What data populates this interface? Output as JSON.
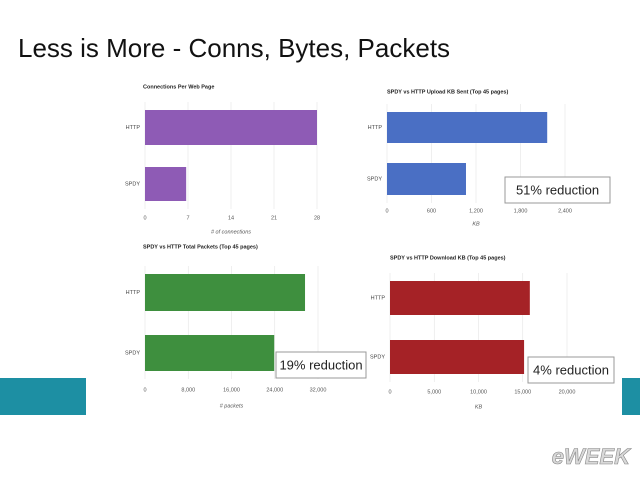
{
  "title": "Less is More - Conns, Bytes, Packets",
  "logo": "eWEEK",
  "chart_data": [
    {
      "type": "bar",
      "horizontal": true,
      "title": "Connections Per Web Page",
      "categories": [
        "HTTP",
        "SPDY"
      ],
      "values": [
        28,
        6.7
      ],
      "color": "#8e5bb5",
      "xlim": [
        0,
        28
      ],
      "xticks": [
        0,
        7,
        14,
        21,
        28
      ],
      "xlabel": "# of connections",
      "grid": true
    },
    {
      "type": "bar",
      "horizontal": true,
      "title": "SPDY vs HTTP Upload KB Sent (Top 45 pages)",
      "categories": [
        "HTTP",
        "SPDY"
      ],
      "values": [
        2160,
        1065
      ],
      "color": "#4a6fc4",
      "xlim": [
        0,
        2400
      ],
      "xticks": [
        0,
        600,
        {
          "value": 1200,
          "label": "1,200"
        },
        {
          "value": 1800,
          "label": "1,800"
        },
        {
          "value": 2400,
          "label": "2,400"
        }
      ],
      "xlabel": "KB",
      "grid": true,
      "annotation": "51% reduction"
    },
    {
      "type": "bar",
      "horizontal": true,
      "title": "SPDY vs HTTP Total Packets (Top 45 pages)",
      "categories": [
        "HTTP",
        "SPDY"
      ],
      "values": [
        29600,
        23900
      ],
      "color": "#3e8f3e",
      "xlim": [
        0,
        32000
      ],
      "xticks": [
        0,
        {
          "value": 8000,
          "label": "8,000"
        },
        {
          "value": 16000,
          "label": "16,000"
        },
        {
          "value": 24000,
          "label": "24,000"
        },
        {
          "value": 32000,
          "label": "32,000"
        }
      ],
      "xlabel": "# packets",
      "grid": true,
      "annotation": "19% reduction"
    },
    {
      "type": "bar",
      "horizontal": true,
      "title": "SPDY vs HTTP Download KB (Top 45 pages)",
      "categories": [
        "HTTP",
        "SPDY"
      ],
      "values": [
        15800,
        15150
      ],
      "color": "#a52226",
      "xlim": [
        0,
        20000
      ],
      "xticks": [
        0,
        {
          "value": 5000,
          "label": "5,000"
        },
        {
          "value": 10000,
          "label": "10,000"
        },
        {
          "value": 15000,
          "label": "15,000"
        },
        {
          "value": 20000,
          "label": "20,000"
        }
      ],
      "xlabel": "KB",
      "grid": true,
      "annotation": "4% reduction"
    }
  ]
}
